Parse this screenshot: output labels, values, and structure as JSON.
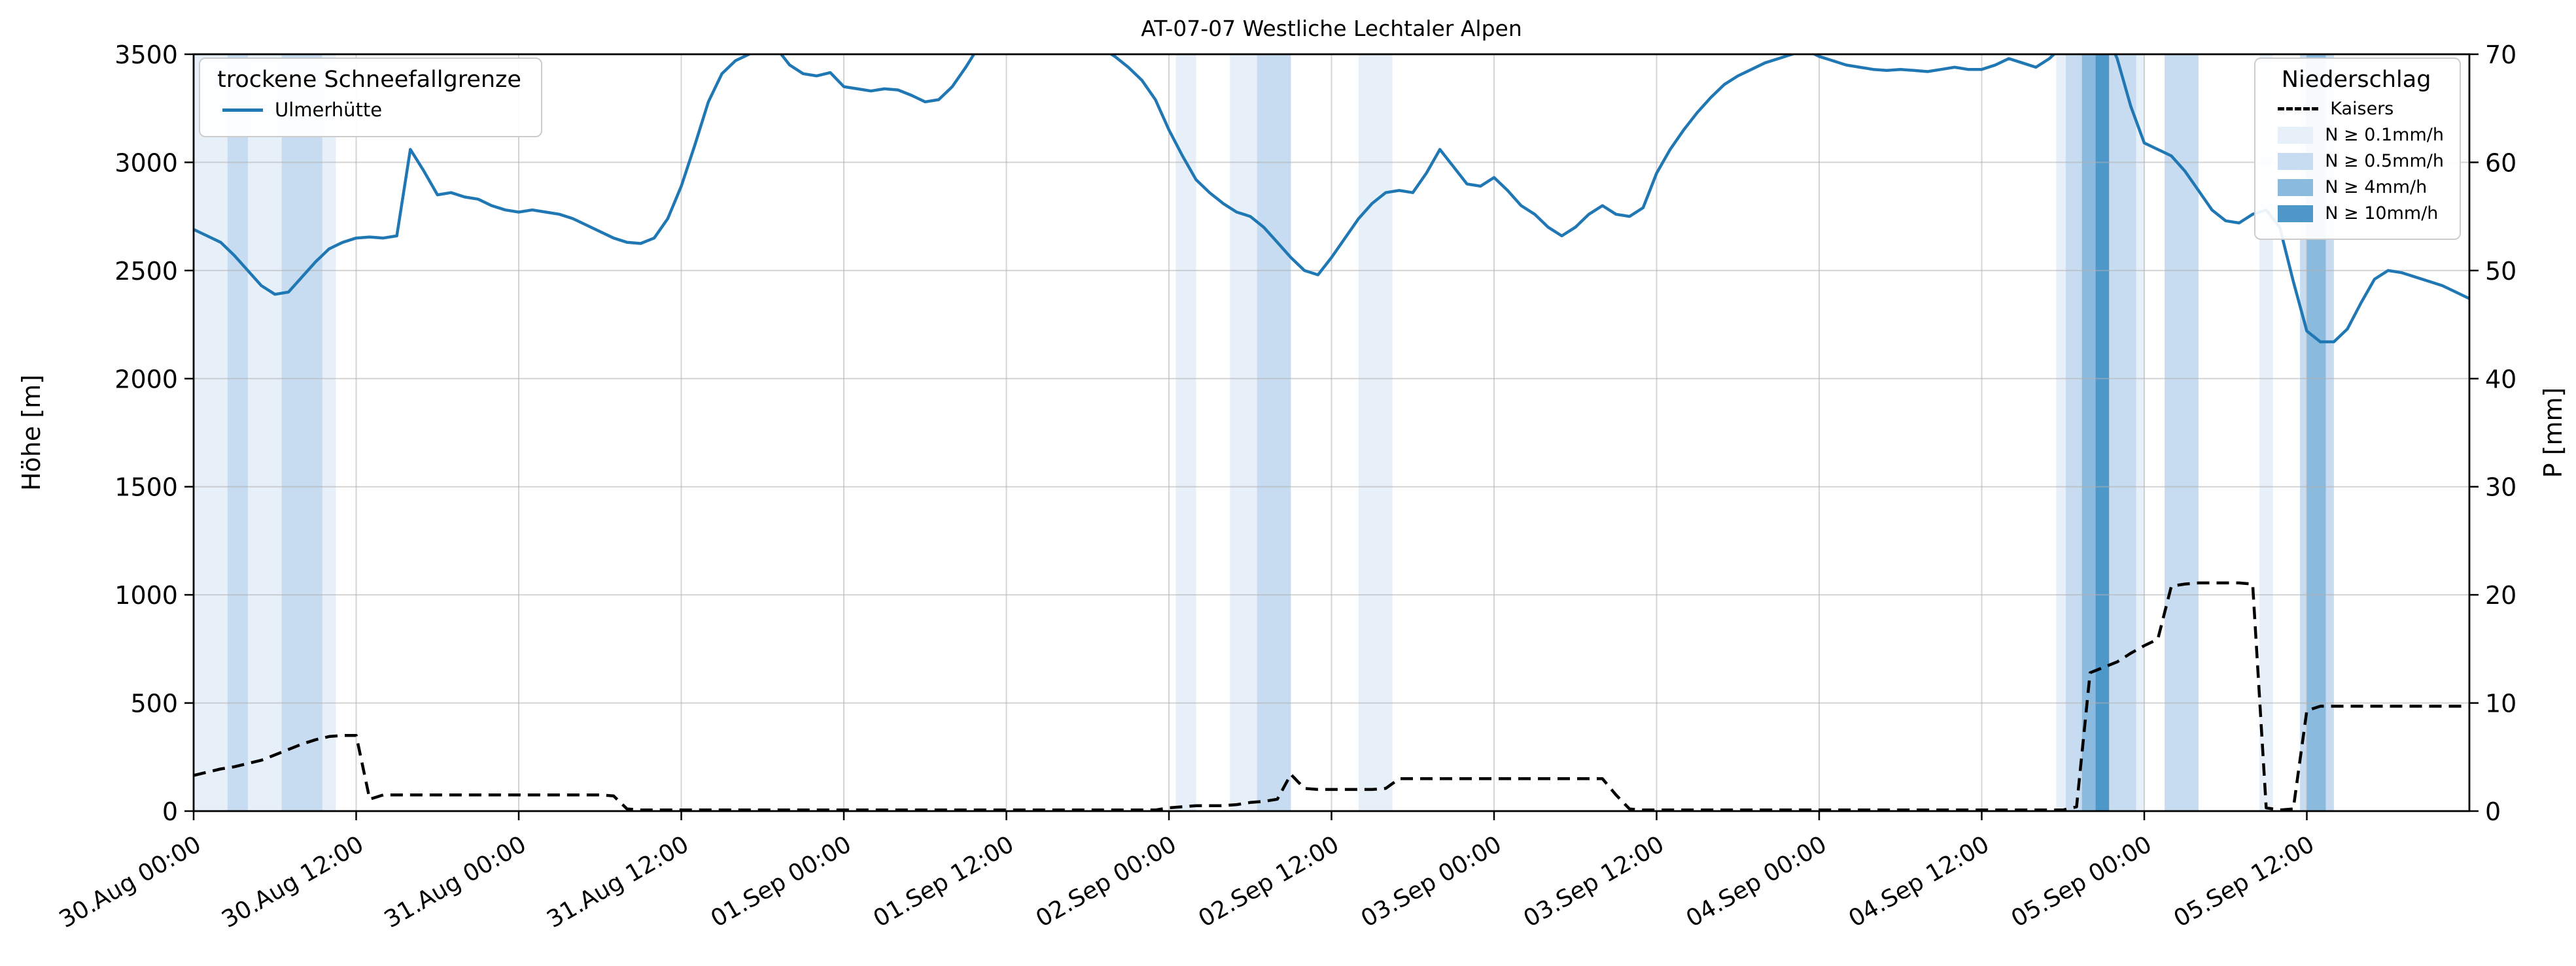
{
  "title": "AT-07-07 Westliche Lechtaler Alpen",
  "axes": {
    "y_left": {
      "label": "Höhe [m]",
      "range": [
        0,
        3500
      ],
      "ticks": [
        0,
        500,
        1000,
        1500,
        2000,
        2500,
        3000,
        3500
      ]
    },
    "y_right": {
      "label": "P [mm]",
      "range": [
        0,
        70
      ],
      "ticks": [
        0,
        10,
        20,
        30,
        40,
        50,
        60,
        70
      ]
    },
    "x": {
      "tick_hours": [
        0,
        12,
        24,
        36,
        48,
        60,
        72,
        84,
        96,
        108,
        120,
        132,
        144,
        156
      ],
      "tick_labels": [
        "30.Aug 00:00",
        "30.Aug 12:00",
        "31.Aug 00:00",
        "31.Aug 12:00",
        "01.Sep 00:00",
        "01.Sep 12:00",
        "02.Sep 00:00",
        "02.Sep 12:00",
        "03.Sep 00:00",
        "03.Sep 12:00",
        "04.Sep 00:00",
        "04.Sep 12:00",
        "05.Sep 00:00",
        "05.Sep 12:00"
      ]
    }
  },
  "legend_left": {
    "title": "trockene Schneefallgrenze",
    "entries": [
      {
        "label": "Ulmerhütte",
        "type": "line",
        "color": "#1f77b4"
      }
    ]
  },
  "legend_right": {
    "title": "Niederschlag",
    "entries": [
      {
        "label": "Kaisers",
        "type": "dashed-line",
        "color": "#000000"
      },
      {
        "label": "N ≥ 0.1mm/h",
        "type": "patch",
        "color": "#e7f0f9"
      },
      {
        "label": "N ≥ 0.5mm/h",
        "type": "patch",
        "color": "#c7dcf0"
      },
      {
        "label": "N ≥ 4mm/h",
        "type": "patch",
        "color": "#8abadd"
      },
      {
        "label": "N ≥ 10mm/h",
        "type": "patch",
        "color": "#4e97c9"
      }
    ]
  },
  "chart_data": {
    "type": "line",
    "title": "AT-07-07 Westliche Lechtaler Alpen",
    "x_range_hours": [
      0,
      168
    ],
    "x_origin_label": "30.Aug 00:00",
    "y_left_range": [
      0,
      3500
    ],
    "y_right_range": [
      0,
      70
    ],
    "grid": true,
    "x_hours": [
      0,
      1,
      2,
      3,
      4,
      5,
      6,
      7,
      8,
      9,
      10,
      11,
      12,
      13,
      14,
      15,
      16,
      17,
      18,
      19,
      20,
      21,
      22,
      23,
      24,
      25,
      26,
      27,
      28,
      29,
      30,
      31,
      32,
      33,
      34,
      35,
      36,
      37,
      38,
      39,
      40,
      41,
      42,
      43,
      44,
      45,
      46,
      47,
      48,
      49,
      50,
      51,
      52,
      53,
      54,
      55,
      56,
      57,
      58,
      59,
      60,
      61,
      62,
      63,
      64,
      65,
      66,
      67,
      68,
      69,
      70,
      71,
      72,
      73,
      74,
      75,
      76,
      77,
      78,
      79,
      80,
      81,
      82,
      83,
      84,
      85,
      86,
      87,
      88,
      89,
      90,
      91,
      92,
      93,
      94,
      95,
      96,
      97,
      98,
      99,
      100,
      101,
      102,
      103,
      104,
      105,
      106,
      107,
      108,
      109,
      110,
      111,
      112,
      113,
      114,
      115,
      116,
      117,
      118,
      119,
      120,
      121,
      122,
      123,
      124,
      125,
      126,
      127,
      128,
      129,
      130,
      131,
      132,
      133,
      134,
      135,
      136,
      137,
      138,
      139,
      140,
      141,
      142,
      143,
      144,
      145,
      146,
      147,
      148,
      149,
      150,
      151,
      152,
      153,
      154,
      155,
      156,
      157,
      158,
      159,
      160,
      161,
      162,
      163,
      164,
      165,
      166,
      167,
      168
    ],
    "series": [
      {
        "name": "Ulmerhütte",
        "axis": "left",
        "unit": "m",
        "color": "#1f77b4",
        "style": "solid",
        "values": [
          2690,
          2660,
          2630,
          2570,
          2500,
          2430,
          2390,
          2400,
          2470,
          2540,
          2600,
          2630,
          2650,
          2655,
          2650,
          2660,
          3060,
          2960,
          2850,
          2860,
          2840,
          2830,
          2800,
          2780,
          2770,
          2780,
          2770,
          2760,
          2740,
          2710,
          2680,
          2650,
          2630,
          2625,
          2650,
          2740,
          2890,
          3080,
          3280,
          3410,
          3470,
          3500,
          3560,
          3530,
          3450,
          3410,
          3400,
          3415,
          3350,
          3340,
          3330,
          3340,
          3335,
          3310,
          3280,
          3290,
          3350,
          3440,
          3540,
          3600,
          3650,
          3680,
          3690,
          3670,
          3650,
          3620,
          3580,
          3530,
          3490,
          3440,
          3380,
          3290,
          3150,
          3030,
          2920,
          2860,
          2810,
          2770,
          2750,
          2700,
          2630,
          2560,
          2500,
          2480,
          2560,
          2650,
          2740,
          2810,
          2860,
          2870,
          2860,
          2950,
          3060,
          2980,
          2900,
          2890,
          2930,
          2870,
          2800,
          2760,
          2700,
          2660,
          2700,
          2760,
          2800,
          2760,
          2750,
          2790,
          2950,
          3060,
          3150,
          3230,
          3300,
          3360,
          3400,
          3430,
          3460,
          3480,
          3500,
          3520,
          3490,
          3470,
          3450,
          3440,
          3430,
          3425,
          3430,
          3425,
          3420,
          3430,
          3440,
          3430,
          3430,
          3450,
          3480,
          3460,
          3440,
          3480,
          3540,
          3620,
          3680,
          3620,
          3480,
          3260,
          3090,
          3060,
          3030,
          2960,
          2870,
          2780,
          2730,
          2720,
          2760,
          2780,
          2700,
          2450,
          2220,
          2170,
          2170,
          2230,
          2350,
          2460,
          2500,
          2490,
          2470,
          2450,
          2430,
          2400,
          2370
        ]
      },
      {
        "name": "Kaisers",
        "axis": "right",
        "unit": "mm",
        "color": "#000000",
        "style": "dashed",
        "values": [
          3.3,
          3.6,
          3.9,
          4.1,
          4.4,
          4.7,
          5.2,
          5.7,
          6.2,
          6.6,
          6.9,
          7.0,
          7.0,
          1.1,
          1.5,
          1.5,
          1.5,
          1.5,
          1.5,
          1.5,
          1.5,
          1.5,
          1.5,
          1.5,
          1.5,
          1.5,
          1.5,
          1.5,
          1.5,
          1.5,
          1.5,
          1.4,
          0.2,
          0.1,
          0.1,
          0.1,
          0.1,
          0.1,
          0.1,
          0.1,
          0.1,
          0.1,
          0.1,
          0.1,
          0.1,
          0.1,
          0.1,
          0.1,
          0.1,
          0.1,
          0.1,
          0.1,
          0.1,
          0.1,
          0.1,
          0.1,
          0.1,
          0.1,
          0.1,
          0.1,
          0.1,
          0.1,
          0.1,
          0.1,
          0.1,
          0.1,
          0.1,
          0.1,
          0.1,
          0.1,
          0.1,
          0.1,
          0.3,
          0.4,
          0.5,
          0.5,
          0.5,
          0.6,
          0.8,
          0.9,
          1.1,
          3.4,
          2.1,
          2.0,
          2.0,
          2.0,
          2.0,
          2.0,
          2.1,
          3.0,
          3.0,
          3.0,
          3.0,
          3.0,
          3.0,
          3.0,
          3.0,
          3.0,
          3.0,
          3.0,
          3.0,
          3.0,
          3.0,
          3.0,
          3.0,
          1.5,
          0.2,
          0.1,
          0.1,
          0.1,
          0.1,
          0.1,
          0.1,
          0.1,
          0.1,
          0.1,
          0.1,
          0.1,
          0.1,
          0.1,
          0.1,
          0.1,
          0.1,
          0.1,
          0.1,
          0.1,
          0.1,
          0.1,
          0.1,
          0.1,
          0.1,
          0.1,
          0.1,
          0.1,
          0.1,
          0.1,
          0.1,
          0.1,
          0.1,
          0.4,
          12.8,
          13.3,
          13.8,
          14.6,
          15.3,
          15.9,
          20.8,
          21.0,
          21.1,
          21.1,
          21.1,
          21.1,
          21.0,
          0.3,
          0.1,
          0.2,
          9.3,
          9.7,
          9.7,
          9.7,
          9.7,
          9.7,
          9.7,
          9.7,
          9.7,
          9.7,
          9.7,
          9.7,
          9.7
        ]
      }
    ],
    "band_colors": {
      "0.1": "#e7f0f9",
      "0.5": "#c7dcf0",
      "4": "#8abadd",
      "10": "#4e97c9"
    },
    "precip_bands": [
      {
        "start_h": 0,
        "end_h": 10.5,
        "level": "0.1"
      },
      {
        "start_h": 2.5,
        "end_h": 4.0,
        "level": "0.5"
      },
      {
        "start_h": 6.5,
        "end_h": 9.5,
        "level": "0.5"
      },
      {
        "start_h": 72.5,
        "end_h": 74.0,
        "level": "0.1"
      },
      {
        "start_h": 76.5,
        "end_h": 78.5,
        "level": "0.1"
      },
      {
        "start_h": 78.5,
        "end_h": 81.0,
        "level": "0.5"
      },
      {
        "start_h": 86.0,
        "end_h": 88.5,
        "level": "0.1"
      },
      {
        "start_h": 137.5,
        "end_h": 144.0,
        "level": "0.1"
      },
      {
        "start_h": 138.2,
        "end_h": 143.4,
        "level": "0.5"
      },
      {
        "start_h": 139.4,
        "end_h": 140.4,
        "level": "4"
      },
      {
        "start_h": 140.4,
        "end_h": 141.4,
        "level": "10"
      },
      {
        "start_h": 145.5,
        "end_h": 148.0,
        "level": "0.5"
      },
      {
        "start_h": 152.5,
        "end_h": 153.5,
        "level": "0.1"
      },
      {
        "start_h": 155.5,
        "end_h": 158.0,
        "level": "0.5"
      },
      {
        "start_h": 156.0,
        "end_h": 157.4,
        "level": "4"
      }
    ]
  }
}
